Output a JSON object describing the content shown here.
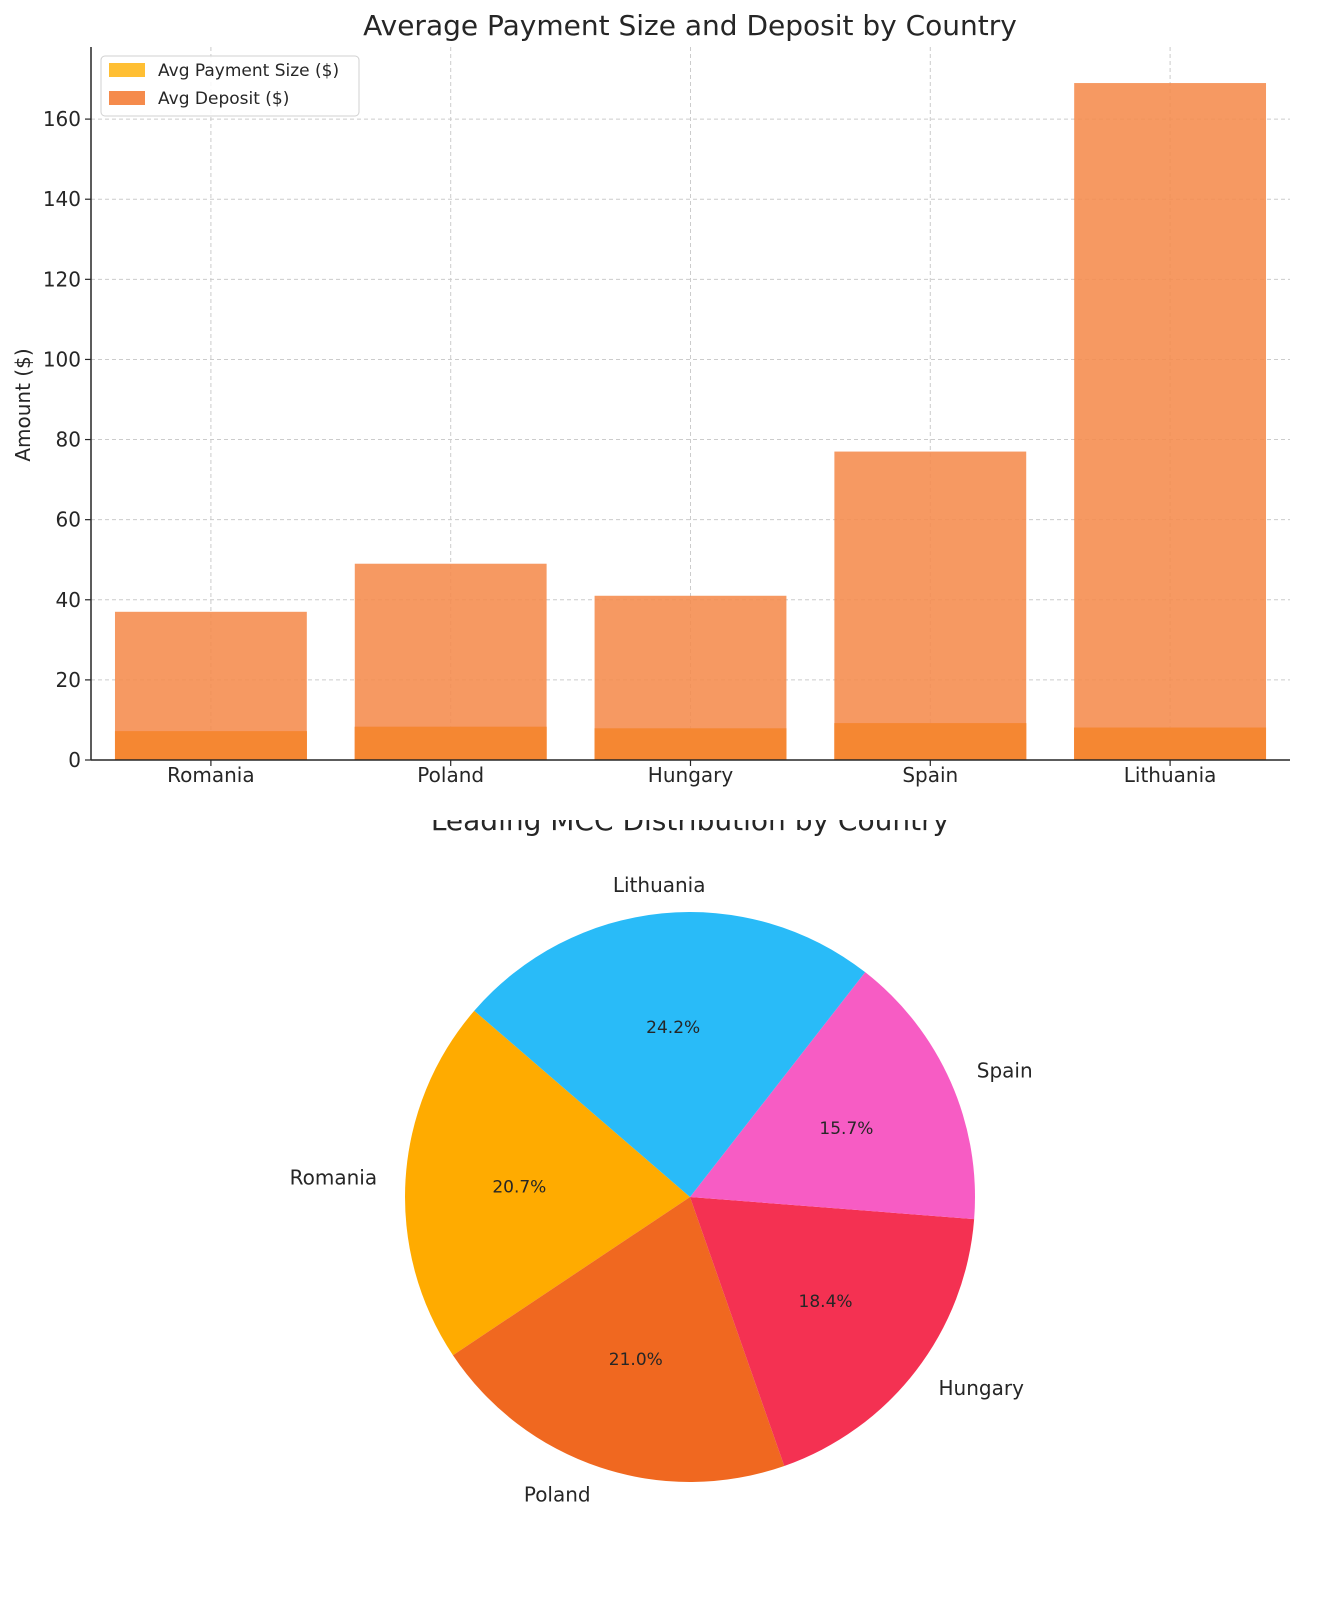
{
  "chart_data": [
    {
      "type": "bar",
      "title": "Average Payment Size and Deposit by Country",
      "xlabel": "",
      "ylabel": "Amount ($)",
      "categories": [
        "Romania",
        "Poland",
        "Hungary",
        "Spain",
        "Lithuania"
      ],
      "series": [
        {
          "name": "Avg Payment Size ($)",
          "color": "#ffbf33",
          "values": [
            7.2,
            8.3,
            7.9,
            9.2,
            8.1
          ]
        },
        {
          "name": "Avg Deposit ($)",
          "color": "#f58b4c",
          "values": [
            37,
            49,
            41,
            77,
            169
          ]
        }
      ],
      "overlay_color": "#f58630",
      "ylim": [
        0,
        178
      ],
      "yticks": [
        0,
        20,
        40,
        60,
        80,
        100,
        120,
        140,
        160
      ],
      "grid": true,
      "legend": "top-left"
    },
    {
      "type": "pie",
      "title": "Leading MCC Distribution by Country",
      "slices": [
        {
          "label": "Romania",
          "value": 20.7,
          "pct_label": "20.7%",
          "color": "#ffab00"
        },
        {
          "label": "Poland",
          "value": 21.0,
          "pct_label": "21.0%",
          "color": "#f06820"
        },
        {
          "label": "Hungary",
          "value": 18.4,
          "pct_label": "18.4%",
          "color": "#f43152"
        },
        {
          "label": "Spain",
          "value": 15.7,
          "pct_label": "15.7%",
          "color": "#f75cc4"
        },
        {
          "label": "Lithuania",
          "value": 24.2,
          "pct_label": "24.2%",
          "color": "#29bbf8"
        }
      ]
    }
  ]
}
